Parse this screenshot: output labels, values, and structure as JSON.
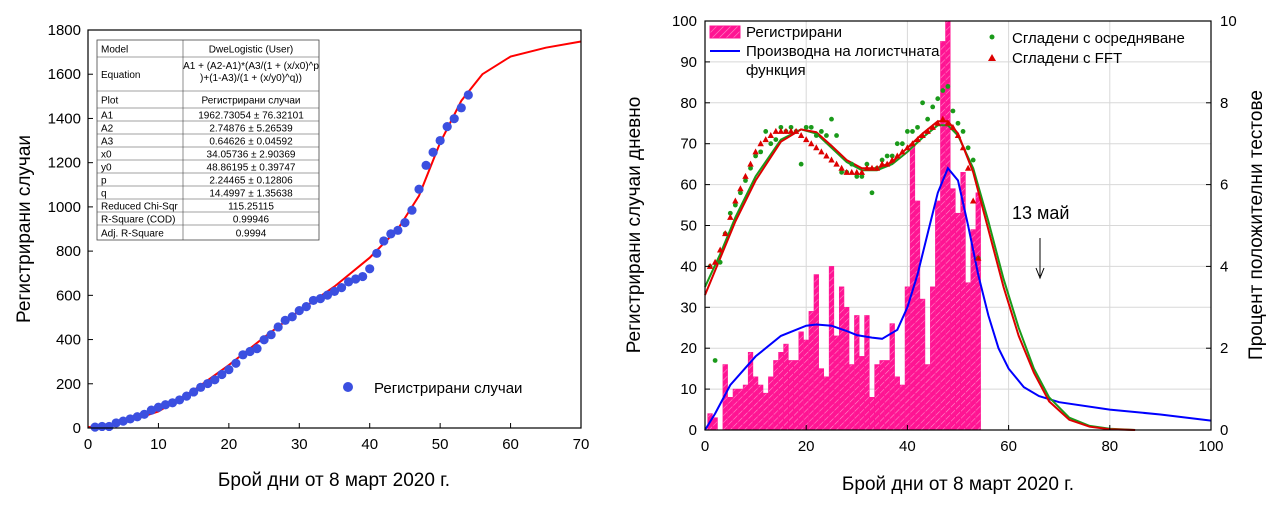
{
  "chart_data": [
    {
      "type": "scatter",
      "xlabel": "Брой дни от 8 март 2020 г.",
      "ylabel": "Регистрирани случаи",
      "xlim": [
        0,
        70
      ],
      "ylim": [
        0,
        1800
      ],
      "xticks": [
        "0",
        "10",
        "20",
        "30",
        "40",
        "50",
        "60",
        "70"
      ],
      "yticks": [
        "0",
        "200",
        "400",
        "600",
        "800",
        "1000",
        "1200",
        "1400",
        "1600",
        "1800"
      ],
      "legend": {
        "placement": "bottom-right",
        "label": "Регистрирани случаи"
      },
      "colors": {
        "points": "#3b4fe0",
        "fit": "#ff0000"
      },
      "fit_table": [
        [
          "Model",
          "DweLogistic (User)"
        ],
        [
          "Equation",
          "A1 + (A2-A1)*(A3/(1 + (x/x0)^p)+(1-A3)/(1 + (x/y0)^q))"
        ],
        [
          "Plot",
          "Регистрирани случаи"
        ],
        [
          "A1",
          "1962.73054 ± 76.32101"
        ],
        [
          "A2",
          "2.74876 ± 5.26539"
        ],
        [
          "A3",
          "0.64626 ± 0.04592"
        ],
        [
          "x0",
          "34.05736 ± 2.90369"
        ],
        [
          "y0",
          "48.86195 ± 0.39747"
        ],
        [
          "p",
          "2.24465 ± 0.12806"
        ],
        [
          "q",
          "14.4997 ± 1.35638"
        ],
        [
          "Reduced Chi-Sqr",
          "115.25115"
        ],
        [
          "R-Square (COD)",
          "0.99946"
        ],
        [
          "Adj. R-Square",
          "0.9994"
        ]
      ],
      "series": [
        {
          "name": "Регистрирани случаи",
          "kind": "points",
          "x": [
            1,
            2,
            3,
            4,
            5,
            6,
            7,
            8,
            9,
            10,
            11,
            12,
            13,
            14,
            15,
            16,
            17,
            18,
            19,
            20,
            21,
            22,
            23,
            24,
            25,
            26,
            27,
            28,
            29,
            30,
            31,
            32,
            33,
            34,
            35,
            36,
            37,
            38,
            39,
            40,
            41,
            42,
            43,
            44,
            45,
            46,
            47,
            48,
            49,
            50,
            51,
            52,
            53,
            54
          ],
          "y": [
            4,
            7,
            7,
            23,
            31,
            41,
            51,
            62,
            81,
            94,
            105,
            114,
            127,
            144,
            163,
            184,
            201,
            218,
            242,
            264,
            293,
            331,
            346,
            359,
            399,
            422,
            457,
            487,
            503,
            531,
            549,
            577,
            585,
            601,
            618,
            635,
            661,
            674,
            685,
            720,
            790,
            846,
            878,
            894,
            929,
            985,
            1080,
            1188,
            1247,
            1300,
            1363,
            1399,
            1448,
            1506
          ]
        },
        {
          "name": "fit",
          "kind": "line",
          "x": [
            0,
            5,
            10,
            15,
            20,
            25,
            30,
            35,
            40,
            44,
            47,
            50,
            53,
            56,
            60,
            65,
            70
          ],
          "y": [
            3,
            22,
            75,
            170,
            285,
            410,
            530,
            640,
            770,
            900,
            1050,
            1290,
            1480,
            1600,
            1680,
            1720,
            1748
          ]
        }
      ]
    },
    {
      "type": "bar",
      "xlabel": "Брой дни от 8 март 2020 г.",
      "ylabel": "Регистрирани случаи дневно",
      "y2label": "Процент положителни тестове",
      "xlim": [
        0,
        100
      ],
      "ylim": [
        0,
        100
      ],
      "y2lim": [
        0,
        10
      ],
      "xticks": [
        "0",
        "20",
        "40",
        "60",
        "80",
        "100"
      ],
      "yticks": [
        "0",
        "10",
        "20",
        "30",
        "40",
        "50",
        "60",
        "70",
        "80",
        "90",
        "100"
      ],
      "y2ticks": [
        "0",
        "2",
        "4",
        "6",
        "8",
        "10"
      ],
      "annotation": "13 май",
      "annotation_arrow_x": 67,
      "legend": {
        "placement": "top",
        "items": [
          {
            "label": "Регистрирани",
            "marker": "hatched-bar",
            "color": "#ff1493"
          },
          {
            "label": "Производна на логистчната функция",
            "marker": "line",
            "color": "#0000ff"
          },
          {
            "label": "Сгладени с осредняване",
            "marker": "dot",
            "color": "#1a9a1a"
          },
          {
            "label": "Сгладени с FFT",
            "marker": "triangle",
            "color": "#dd0000"
          }
        ]
      },
      "bars": {
        "name": "Регистрирани",
        "x": [
          1,
          2,
          3,
          4,
          5,
          6,
          7,
          8,
          9,
          10,
          11,
          12,
          13,
          14,
          15,
          16,
          17,
          18,
          19,
          20,
          21,
          22,
          23,
          24,
          25,
          26,
          27,
          28,
          29,
          30,
          31,
          32,
          33,
          34,
          35,
          36,
          37,
          38,
          39,
          40,
          41,
          42,
          43,
          44,
          45,
          46,
          47,
          48,
          49,
          50,
          51,
          52,
          53,
          54
        ],
        "values": [
          4,
          3,
          0,
          16,
          8,
          10,
          10,
          11,
          19,
          13,
          11,
          9,
          13,
          17,
          19,
          21,
          17,
          17,
          24,
          22,
          29,
          38,
          15,
          13,
          40,
          23,
          35,
          30,
          16,
          28,
          18,
          28,
          8,
          16,
          17,
          17,
          26,
          13,
          11,
          35,
          70,
          56,
          32,
          16,
          35,
          56,
          95,
          108,
          59,
          53,
          63,
          36,
          49,
          58
        ]
      },
      "series": [
        {
          "name": "Производна на логистчната функция",
          "kind": "line",
          "x": [
            0,
            2,
            5,
            10,
            15,
            20,
            22,
            25,
            28,
            30,
            33,
            35,
            38,
            40,
            42,
            44,
            46,
            48,
            50,
            52,
            54,
            56,
            58,
            60,
            63,
            66,
            70,
            80,
            90,
            100
          ],
          "y": [
            0,
            4,
            11,
            18,
            23,
            25.5,
            25.8,
            25.5,
            24.2,
            23.2,
            22.6,
            22.3,
            24.5,
            30,
            38,
            48,
            58,
            64,
            61,
            50,
            38,
            28,
            20,
            15,
            10.5,
            8.3,
            6.8,
            5,
            3.8,
            2.3
          ]
        },
        {
          "name": "Сгладени с осредняване",
          "kind": "points",
          "x": [
            1,
            2,
            3,
            4,
            5,
            6,
            7,
            8,
            9,
            10,
            11,
            12,
            13,
            14,
            15,
            16,
            17,
            18,
            19,
            20,
            21,
            22,
            23,
            24,
            25,
            26,
            27,
            28,
            29,
            30,
            31,
            32,
            33,
            34,
            35,
            36,
            37,
            38,
            39,
            40,
            41,
            42,
            43,
            44,
            45,
            46,
            47,
            48,
            49,
            50,
            51,
            52,
            53,
            54
          ],
          "y": [
            40,
            17,
            41,
            48,
            53,
            55,
            58,
            61,
            64,
            67,
            68,
            73,
            70,
            71,
            74,
            73,
            74,
            73,
            65,
            74,
            74,
            72,
            73,
            72,
            76,
            72,
            63,
            63,
            65,
            62,
            62,
            65,
            58,
            64,
            66,
            67,
            67,
            70,
            70,
            73,
            73,
            74,
            80,
            76,
            79,
            81,
            83,
            84,
            78,
            75,
            73,
            69,
            66,
            42
          ]
        },
        {
          "name": "Сгладени с FFT",
          "kind": "points",
          "x": [
            1,
            2,
            3,
            4,
            5,
            6,
            7,
            8,
            9,
            10,
            11,
            12,
            13,
            14,
            15,
            16,
            17,
            18,
            19,
            20,
            21,
            22,
            23,
            24,
            25,
            26,
            27,
            28,
            29,
            30,
            31,
            32,
            33,
            34,
            35,
            36,
            37,
            38,
            39,
            40,
            41,
            42,
            43,
            44,
            45,
            46,
            47,
            48,
            49,
            50,
            51,
            52,
            53,
            54
          ],
          "y": [
            40,
            41,
            44,
            48,
            52,
            56,
            59,
            62,
            65,
            68,
            70,
            71,
            72,
            73,
            73,
            73,
            73,
            73,
            72,
            71,
            70,
            69,
            68,
            67,
            66,
            65,
            64,
            63,
            63,
            63,
            63,
            64,
            64,
            64,
            65,
            65,
            66,
            67,
            68,
            69,
            70,
            71,
            72,
            73,
            74,
            75,
            76,
            75,
            74,
            72,
            69,
            64,
            56,
            42
          ]
        },
        {
          "name": "green-fit",
          "kind": "line",
          "x": [
            0,
            3,
            6,
            10,
            15,
            19,
            22,
            25,
            28,
            31,
            34,
            37,
            40,
            43,
            46,
            48,
            50,
            53,
            56,
            59,
            62,
            65,
            68,
            72,
            76,
            80,
            85
          ],
          "y": [
            35,
            43,
            52,
            62,
            71,
            73.5,
            72.5,
            69,
            65.5,
            63.5,
            63.5,
            65,
            68,
            71.5,
            74.5,
            74.5,
            72,
            64,
            51,
            37,
            25,
            15,
            8,
            3,
            1,
            0.3,
            0
          ]
        },
        {
          "name": "red-fit",
          "kind": "line",
          "x": [
            0,
            3,
            6,
            10,
            15,
            19,
            22,
            25,
            28,
            31,
            34,
            37,
            40,
            43,
            46,
            48,
            50,
            53,
            56,
            59,
            62,
            65,
            68,
            72,
            76,
            80,
            85
          ],
          "y": [
            33,
            42,
            51,
            61,
            70.5,
            73.5,
            72.8,
            69.5,
            66,
            64,
            64,
            65.5,
            69,
            72.5,
            75.5,
            75.5,
            72.5,
            63,
            49,
            35,
            23,
            14,
            7,
            2.5,
            0.8,
            0.2,
            0
          ]
        }
      ]
    }
  ]
}
